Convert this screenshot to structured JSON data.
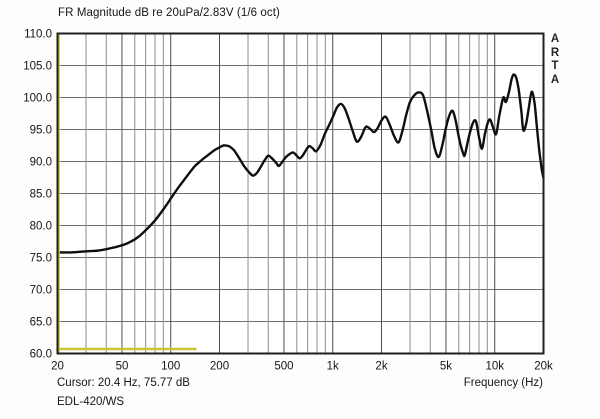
{
  "header": {
    "title": "FR Magnitude dB re 20uPa/2.83V (1/6 oct)"
  },
  "branding": {
    "name": "ARTA",
    "letters": [
      "A",
      "R",
      "T",
      "A"
    ]
  },
  "status": {
    "cursor_readout": "Cursor: 20.4 Hz, 75.77 dB",
    "annotation": "EDL-420/WS",
    "x_axis_label": "Frequency (Hz)"
  },
  "colors": {
    "background": "#fdfdfc",
    "plot_background": "#ffffff",
    "border": "#1f1f1f",
    "grid_minor": "#8e8e8e",
    "grid_major": "#4f4f4f",
    "curve": "#0f0f0f",
    "overlay": "#c9c437",
    "text": "#161616"
  },
  "axes": {
    "y": {
      "unit": "dB",
      "min": 60,
      "max": 110,
      "tick_step": 5,
      "tick_labels": [
        "110.0",
        "105.0",
        "100.0",
        "95.0",
        "90.0",
        "85.0",
        "80.0",
        "75.0",
        "70.0",
        "65.0",
        "60.0"
      ],
      "tick_values": [
        110,
        105,
        100,
        95,
        90,
        85,
        80,
        75,
        70,
        65,
        60
      ]
    },
    "x": {
      "unit": "Hz",
      "scale": "log",
      "min_hz": 20,
      "max_hz": 20000,
      "labeled_ticks": [
        {
          "hz": 20,
          "label": "20"
        },
        {
          "hz": 50,
          "label": "50"
        },
        {
          "hz": 100,
          "label": "100"
        },
        {
          "hz": 200,
          "label": "200"
        },
        {
          "hz": 500,
          "label": "500"
        },
        {
          "hz": 1000,
          "label": "1k"
        },
        {
          "hz": 2000,
          "label": "2k"
        },
        {
          "hz": 5000,
          "label": "5k"
        },
        {
          "hz": 10000,
          "label": "10k"
        },
        {
          "hz": 20000,
          "label": "20k"
        }
      ],
      "minor_ticks_hz": [
        30,
        40,
        60,
        70,
        80,
        90,
        300,
        400,
        600,
        700,
        800,
        900,
        3000,
        4000,
        6000,
        7000,
        8000,
        9000
      ]
    }
  },
  "chart_data": {
    "type": "line",
    "title": "FR Magnitude dB re 20uPa/2.83V (1/6 oct)",
    "xlabel": "Frequency (Hz)",
    "ylabel": "dB",
    "x_scale": "log",
    "xlim": [
      20,
      20000
    ],
    "ylim": [
      60,
      110
    ],
    "grid": true,
    "legend": "none",
    "series": [
      {
        "name": "frequency-response",
        "color": "#0f0f0f",
        "width": 2.4,
        "smooth": true,
        "points": [
          [
            20,
            75.8
          ],
          [
            24,
            75.8
          ],
          [
            28,
            75.9
          ],
          [
            32,
            76.0
          ],
          [
            36,
            76.1
          ],
          [
            40,
            76.3
          ],
          [
            45,
            76.6
          ],
          [
            50,
            76.9
          ],
          [
            56,
            77.4
          ],
          [
            63,
            78.2
          ],
          [
            71,
            79.4
          ],
          [
            80,
            80.8
          ],
          [
            90,
            82.5
          ],
          [
            100,
            84.2
          ],
          [
            112,
            86.0
          ],
          [
            125,
            87.6
          ],
          [
            140,
            89.2
          ],
          [
            150,
            89.9
          ],
          [
            160,
            90.5
          ],
          [
            170,
            91.0
          ],
          [
            180,
            91.5
          ],
          [
            190,
            91.9
          ],
          [
            200,
            92.2
          ],
          [
            212,
            92.5
          ],
          [
            228,
            92.4
          ],
          [
            245,
            91.8
          ],
          [
            265,
            90.5
          ],
          [
            285,
            89.2
          ],
          [
            305,
            88.3
          ],
          [
            322,
            87.8
          ],
          [
            340,
            88.2
          ],
          [
            360,
            89.2
          ],
          [
            380,
            90.2
          ],
          [
            400,
            90.9
          ],
          [
            425,
            90.4
          ],
          [
            450,
            89.7
          ],
          [
            465,
            89.3
          ],
          [
            490,
            90.0
          ],
          [
            515,
            90.7
          ],
          [
            545,
            91.2
          ],
          [
            570,
            91.4
          ],
          [
            595,
            91.0
          ],
          [
            625,
            90.5
          ],
          [
            655,
            91.0
          ],
          [
            685,
            91.8
          ],
          [
            715,
            92.4
          ],
          [
            750,
            92.1
          ],
          [
            790,
            91.6
          ],
          [
            840,
            92.6
          ],
          [
            890,
            94.2
          ],
          [
            945,
            95.6
          ],
          [
            1000,
            96.9
          ],
          [
            1060,
            98.4
          ],
          [
            1120,
            99.0
          ],
          [
            1180,
            98.4
          ],
          [
            1250,
            96.8
          ],
          [
            1330,
            94.7
          ],
          [
            1410,
            93.1
          ],
          [
            1500,
            93.9
          ],
          [
            1600,
            95.4
          ],
          [
            1700,
            95.1
          ],
          [
            1800,
            94.6
          ],
          [
            1900,
            95.3
          ],
          [
            2000,
            96.4
          ],
          [
            2120,
            97.0
          ],
          [
            2250,
            95.7
          ],
          [
            2400,
            93.9
          ],
          [
            2550,
            93.0
          ],
          [
            2700,
            94.9
          ],
          [
            2850,
            97.4
          ],
          [
            3000,
            99.3
          ],
          [
            3200,
            100.4
          ],
          [
            3400,
            100.8
          ],
          [
            3600,
            100.4
          ],
          [
            3800,
            98.2
          ],
          [
            4050,
            95.0
          ],
          [
            4250,
            92.2
          ],
          [
            4500,
            90.7
          ],
          [
            4750,
            92.6
          ],
          [
            5000,
            95.3
          ],
          [
            5250,
            97.2
          ],
          [
            5500,
            97.9
          ],
          [
            5750,
            96.3
          ],
          [
            6050,
            93.4
          ],
          [
            6400,
            91.2
          ],
          [
            6550,
            91.1
          ],
          [
            6900,
            93.7
          ],
          [
            7300,
            95.9
          ],
          [
            7650,
            96.3
          ],
          [
            8000,
            93.8
          ],
          [
            8350,
            92.0
          ],
          [
            8700,
            94.3
          ],
          [
            9100,
            96.2
          ],
          [
            9400,
            96.5
          ],
          [
            9800,
            95.2
          ],
          [
            10200,
            94.3
          ],
          [
            10700,
            97.3
          ],
          [
            11300,
            100.0
          ],
          [
            11700,
            99.3
          ],
          [
            12200,
            100.7
          ],
          [
            12700,
            102.8
          ],
          [
            13100,
            103.6
          ],
          [
            13600,
            103.0
          ],
          [
            14100,
            101.0
          ],
          [
            14600,
            97.8
          ],
          [
            15000,
            94.9
          ],
          [
            15600,
            95.8
          ],
          [
            16300,
            98.7
          ],
          [
            16900,
            100.9
          ],
          [
            17600,
            99.2
          ],
          [
            18200,
            95.4
          ],
          [
            18900,
            91.4
          ],
          [
            19500,
            88.8
          ],
          [
            20000,
            87.4
          ]
        ]
      },
      {
        "name": "overlay-marker",
        "color": "#c9c437",
        "width": 2.6,
        "smooth": false,
        "points": [
          [
            20,
            60.7
          ],
          [
            142,
            60.7
          ]
        ]
      }
    ],
    "decorations": {
      "left_edge_vertical_marker": true,
      "marker_color": "#c9c437"
    }
  }
}
